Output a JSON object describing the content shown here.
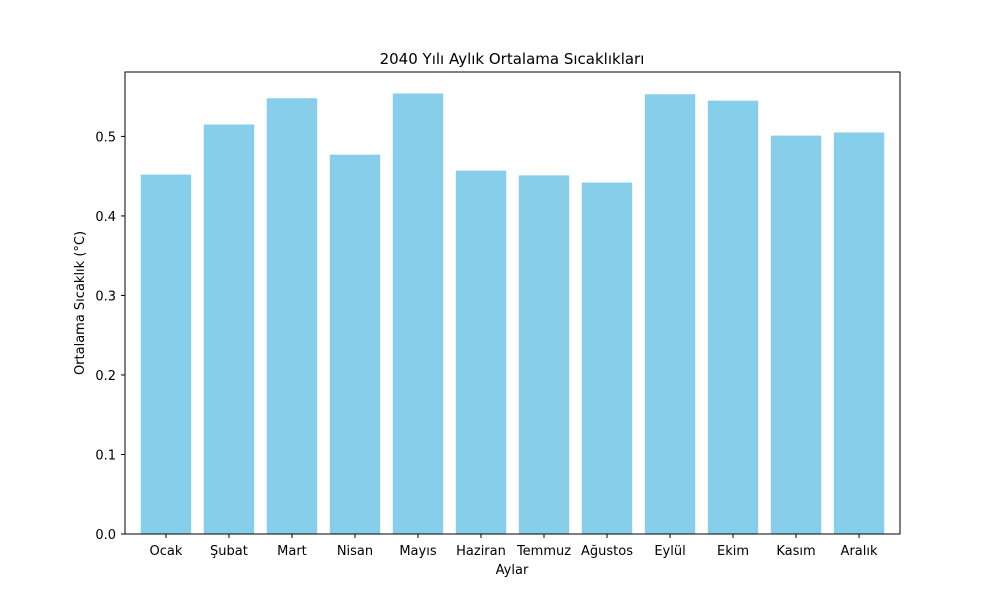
{
  "chart_data": {
    "type": "bar",
    "title": "2040 Yılı Aylık Ortalama Sıcaklıkları",
    "xlabel": "Aylar",
    "ylabel": "Ortalama Sıcaklık (°C)",
    "categories": [
      "Ocak",
      "Şubat",
      "Mart",
      "Nisan",
      "Mayıs",
      "Haziran",
      "Temmuz",
      "Ağustos",
      "Eylül",
      "Ekim",
      "Kasım",
      "Aralık"
    ],
    "values": [
      0.452,
      0.515,
      0.548,
      0.477,
      0.554,
      0.457,
      0.451,
      0.442,
      0.553,
      0.545,
      0.501,
      0.505
    ],
    "ylim": [
      0,
      0.581
    ],
    "yticks": [
      0.0,
      0.1,
      0.2,
      0.3,
      0.4,
      0.5
    ],
    "ytick_labels": [
      "0.0",
      "0.1",
      "0.2",
      "0.3",
      "0.4",
      "0.5"
    ],
    "bar_color": "#87ceeb",
    "grid": false,
    "legend": false
  }
}
